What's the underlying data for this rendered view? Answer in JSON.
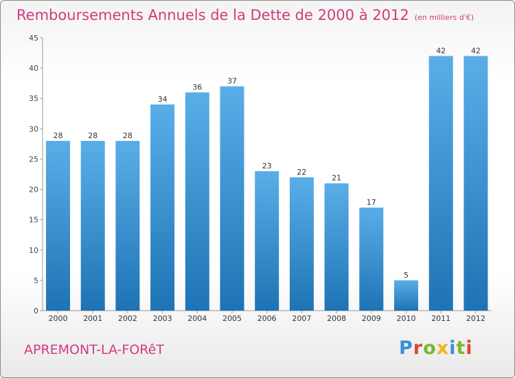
{
  "header": {
    "title": "Remboursements Annuels de la Dette de 2000 à 2012",
    "subtitle": "(en milliers d'€)"
  },
  "footer": {
    "commune": "APREMONT-LA-FORêT",
    "brand": "Proxiti"
  },
  "colors": {
    "title": "#d23a7e",
    "bar_top": "#5aaee8",
    "bar_bottom": "#1e73b4",
    "brand_letters": [
      "#3a8fd6",
      "#e0462f",
      "#7bb82c",
      "#f0b21c",
      "#3a8fd6",
      "#7bb82c",
      "#e0462f"
    ]
  },
  "chart_data": {
    "type": "bar",
    "categories": [
      "2000",
      "2001",
      "2002",
      "2003",
      "2004",
      "2005",
      "2006",
      "2007",
      "2008",
      "2009",
      "2010",
      "2011",
      "2012"
    ],
    "values": [
      28,
      28,
      28,
      34,
      36,
      37,
      23,
      22,
      21,
      17,
      5,
      42,
      42
    ],
    "ylim": [
      0,
      45
    ],
    "yticks": [
      0,
      5,
      10,
      15,
      20,
      25,
      30,
      35,
      40,
      45
    ],
    "grid": false,
    "legend": "none"
  }
}
